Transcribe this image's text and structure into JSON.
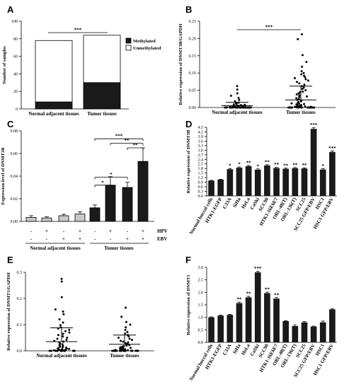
{
  "chart_data": [
    {
      "panel": "A",
      "type": "bar",
      "stacked": true,
      "categories": [
        "Normal adjacent tissues",
        "Tumor tissues"
      ],
      "series": [
        {
          "name": "Methylated",
          "values": [
            8,
            30
          ],
          "color": "#1a1a1a"
        },
        {
          "name": "Unmethylated",
          "values": [
            70,
            54
          ],
          "color": "#ffffff"
        }
      ],
      "ylabel": "Number of samples",
      "ylim": [
        0,
        100
      ],
      "yticks": [
        0,
        20,
        40,
        60,
        80,
        100
      ],
      "significance": "***",
      "legend_position": "right"
    },
    {
      "panel": "B",
      "type": "scatter",
      "categories": [
        "Normal adjacent tissues",
        "Tumor tissues"
      ],
      "ylabel": "Relative expression of DNMT3B/GAPDH",
      "ylim": [
        0,
        0.25
      ],
      "yticks": [
        "0.00",
        "0.05",
        "0.10",
        "0.15",
        "0.20",
        "0.25"
      ],
      "means": [
        0.005,
        0.022
      ],
      "sd_upper": [
        0.015,
        0.062
      ],
      "groups": [
        [
          0.062,
          0.052,
          0.041,
          0.034,
          0.028,
          0.022,
          0.018,
          0.014,
          0.012,
          0.01,
          0.009,
          0.008,
          0.007,
          0.006,
          0.005,
          0.005,
          0.004,
          0.004,
          0.003,
          0.003,
          0.003,
          0.002,
          0.002,
          0.002,
          0.001,
          0.001,
          0.001,
          0.001,
          0.001,
          0.001,
          0,
          0,
          0,
          0,
          0,
          0,
          0,
          0,
          0,
          0,
          0,
          0,
          0,
          0,
          0,
          0,
          0,
          0,
          0,
          0,
          0,
          0,
          0,
          0,
          0,
          0,
          0,
          0,
          0,
          0
        ],
        [
          0.212,
          0.198,
          0.152,
          0.132,
          0.118,
          0.105,
          0.1,
          0.096,
          0.092,
          0.088,
          0.085,
          0.082,
          0.078,
          0.074,
          0.07,
          0.066,
          0.062,
          0.058,
          0.054,
          0.05,
          0.046,
          0.044,
          0.041,
          0.038,
          0.035,
          0.032,
          0.03,
          0.027,
          0.024,
          0.022,
          0.02,
          0.018,
          0.016,
          0.014,
          0.012,
          0.011,
          0.01,
          0.009,
          0.008,
          0.007,
          0.006,
          0.005,
          0.004,
          0.004,
          0.003,
          0.003,
          0.002,
          0.002,
          0.002,
          0.001,
          0.001,
          0.001,
          0,
          0,
          0,
          0,
          0,
          0,
          0,
          0,
          0,
          0,
          0,
          0,
          0,
          0,
          0,
          0,
          0,
          0
        ]
      ],
      "significance": "***"
    },
    {
      "panel": "C",
      "type": "bar",
      "ylabel": "Expression level of DNMT3B",
      "ylim": [
        0,
        0.08
      ],
      "yticks": [
        "0.00",
        "0.02",
        "0.04",
        "0.06",
        "0.08"
      ],
      "bars": [
        {
          "value": 0.0035,
          "err": 0.0015,
          "color": "#c8c8c8"
        },
        {
          "value": 0.003,
          "err": 0.001,
          "color": "#c8c8c8"
        },
        {
          "value": 0.005,
          "err": 0.0012,
          "color": "#c8c8c8"
        },
        {
          "value": 0.0065,
          "err": 0.002,
          "color": "#c8c8c8"
        },
        {
          "value": 0.012,
          "err": 0.0025,
          "color": "#1a1a1a"
        },
        {
          "value": 0.032,
          "err": 0.0075,
          "color": "#1a1a1a"
        },
        {
          "value": 0.03,
          "err": 0.0045,
          "color": "#1a1a1a"
        },
        {
          "value": 0.053,
          "err": 0.012,
          "color": "#1a1a1a"
        }
      ],
      "row_labels": [
        "HPV",
        "EBV"
      ],
      "hpv": [
        "-",
        "+",
        "-",
        "+",
        "-",
        "+",
        "-",
        "+"
      ],
      "ebv": [
        "-",
        "-",
        "+",
        "+",
        "-",
        "-",
        "+",
        "+"
      ],
      "groups": [
        "Normal adjacent tissues",
        "Tumor tissues"
      ],
      "comparisons": [
        {
          "from": 4,
          "to": 7,
          "level": 0.073,
          "label": "***"
        },
        {
          "from": 5,
          "to": 7,
          "level": 0.069,
          "label": "**"
        },
        {
          "from": 6,
          "to": 7,
          "level": 0.065,
          "label": "**"
        },
        {
          "from": 4,
          "to": 6,
          "level": 0.039,
          "label": "*"
        },
        {
          "from": 4,
          "to": 5,
          "level": 0.032,
          "label": "*"
        }
      ]
    },
    {
      "panel": "D",
      "type": "bar",
      "ylabel": "Relative expression of DNMT3B",
      "ylim": [
        0,
        4.5
      ],
      "yticks": [
        "0.0",
        "0.3",
        "0.6",
        "0.9",
        "1.2",
        "1.5",
        "1.8",
        "2.1",
        "2.4",
        "2.7",
        "3.0",
        "3.3",
        "3.6",
        "3.9",
        "4.2",
        "4.5"
      ],
      "categories": [
        "Normal buccal cells",
        "HTK1-EGFP",
        "C33A",
        "SiHa",
        "HeLa",
        "CaSki",
        "SCC90",
        "HTK1-16E6E7",
        "ORL-48(T)",
        "ORL-136(T)",
        "SCC25",
        "SCC25 GFP/EBV",
        "HSC1",
        "HSC1 GFP/EBV"
      ],
      "values": [
        1.0,
        1.07,
        1.75,
        1.85,
        1.95,
        1.72,
        2.0,
        1.83,
        1.78,
        1.82,
        1.8,
        4.4,
        1.73,
        2.88
      ],
      "errors": [
        0.02,
        0.02,
        0.05,
        0.05,
        0.05,
        0.05,
        0.05,
        0.04,
        0.04,
        0.04,
        0.04,
        0.07,
        0.06,
        0.07
      ],
      "significance": [
        "",
        "",
        "*",
        "*",
        "**",
        "*",
        "**",
        "**",
        "**",
        "**",
        "**",
        "***",
        "*",
        "***"
      ]
    },
    {
      "panel": "E",
      "type": "scatter",
      "categories": [
        "Normal adjacent tissues",
        "Tumor tissues"
      ],
      "ylabel": "Relative expression of DNMT1/GAPDH",
      "ylim": [
        0,
        0.3
      ],
      "yticks": [
        "0.0",
        "0.1",
        "0.2",
        "0.3"
      ],
      "means": [
        0.035,
        0.025
      ],
      "sd_upper": [
        0.088,
        0.06
      ],
      "groups": [
        [
          0.275,
          0.265,
          0.205,
          0.158,
          0.15,
          0.14,
          0.12,
          0.108,
          0.098,
          0.09,
          0.085,
          0.08,
          0.075,
          0.07,
          0.065,
          0.06,
          0.055,
          0.05,
          0.046,
          0.042,
          0.038,
          0.035,
          0.032,
          0.028,
          0.025,
          0.022,
          0.02,
          0.018,
          0.016,
          0.014,
          0.012,
          0.01,
          0.009,
          0.008,
          0.007,
          0.006,
          0.005,
          0.004,
          0.003,
          0.003,
          0.002,
          0.002,
          0.001,
          0.001,
          0,
          0,
          0,
          0,
          0,
          0,
          0,
          0,
          0,
          0,
          0,
          0,
          0,
          0
        ],
        [
          0.165,
          0.13,
          0.11,
          0.1,
          0.09,
          0.08,
          0.072,
          0.066,
          0.06,
          0.055,
          0.05,
          0.046,
          0.042,
          0.038,
          0.035,
          0.032,
          0.029,
          0.026,
          0.024,
          0.022,
          0.02,
          0.018,
          0.016,
          0.014,
          0.012,
          0.011,
          0.01,
          0.009,
          0.008,
          0.007,
          0.006,
          0.005,
          0.004,
          0.004,
          0.003,
          0.003,
          0.002,
          0.002,
          0.001,
          0.001,
          0,
          0,
          0,
          0,
          0,
          0,
          0,
          0,
          0,
          0,
          0,
          0,
          0,
          0,
          0,
          0,
          0,
          0,
          0,
          0,
          0,
          0,
          0,
          0
        ]
      ]
    },
    {
      "panel": "F",
      "type": "bar",
      "ylabel": "Relative expression of DNMT1",
      "ylim": [
        0,
        3.0
      ],
      "yticks": [
        "0.0",
        "0.5",
        "1.0",
        "1.5",
        "2.0",
        "2.5",
        "3.0"
      ],
      "categories": [
        "Normal buccal cells",
        "HTK1-EGFP",
        "C33A",
        "SiHa",
        "HeLa",
        "CaSki",
        "SCC90",
        "HTK1-16E6E7",
        "ORL-48(T)",
        "ORL-136(T)",
        "SCC25",
        "SCC25 GFP/EBV",
        "HSC1",
        "HSC1 GFP/EBV"
      ],
      "values": [
        1.0,
        1.07,
        1.1,
        1.57,
        1.8,
        2.8,
        1.97,
        1.75,
        0.85,
        0.65,
        0.8,
        0.63,
        0.8,
        1.32
      ],
      "errors": [
        0.02,
        0.02,
        0.02,
        0.04,
        0.04,
        0.04,
        0.04,
        0.04,
        0.02,
        0.04,
        0.03,
        0.02,
        0.05,
        0.02
      ],
      "significance": [
        "",
        "",
        "",
        "**",
        "**",
        "***",
        "**",
        "**",
        "",
        "",
        "",
        "",
        "",
        ""
      ]
    }
  ]
}
